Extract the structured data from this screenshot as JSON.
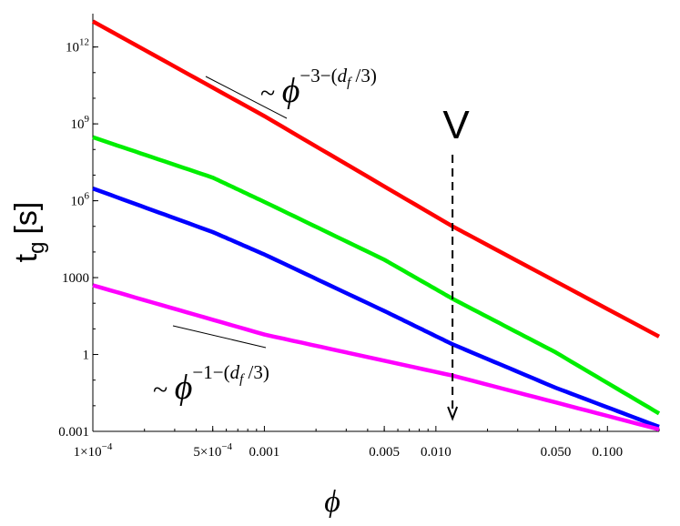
{
  "chart_data": {
    "type": "line",
    "title": "",
    "xlabel": "ϕ",
    "ylabel": {
      "main": "t",
      "sub": "g",
      "unit": "[s]"
    },
    "x_scale": "log",
    "y_scale": "log",
    "xlim": [
      0.0001,
      0.2
    ],
    "ylim": [
      0.001,
      20000000000000
    ],
    "x_ticks": [
      {
        "value": 0.0001,
        "label": "1×10",
        "sup": "−4"
      },
      {
        "value": 0.0005,
        "label": "5×10",
        "sup": "−4"
      },
      {
        "value": 0.001,
        "label": "0.001"
      },
      {
        "value": 0.005,
        "label": "0.005"
      },
      {
        "value": 0.01,
        "label": "0.010"
      },
      {
        "value": 0.05,
        "label": "0.050"
      },
      {
        "value": 0.1,
        "label": "0.100"
      }
    ],
    "y_ticks": [
      {
        "value": 0.001,
        "label": "0.001"
      },
      {
        "value": 1,
        "label": "1"
      },
      {
        "value": 1000,
        "label": "1000"
      },
      {
        "value": 1000000,
        "label": "10",
        "sup": "6"
      },
      {
        "value": 1000000000,
        "label": "10",
        "sup": "9"
      },
      {
        "value": 1000000000000,
        "label": "10",
        "sup": "12"
      }
    ],
    "series": [
      {
        "color": "#ff0000",
        "x": [
          0.0001,
          0.001,
          0.0125,
          0.2
        ],
        "y": [
          10000000000000,
          2000000000,
          100000,
          5
        ]
      },
      {
        "color": "#00ee00",
        "x": [
          0.0001,
          0.0005,
          0.001,
          0.005,
          0.0125,
          0.05,
          0.2
        ],
        "y": [
          300000000,
          8000000,
          900000,
          5000,
          150,
          1.2,
          0.005
        ]
      },
      {
        "color": "#0000ff",
        "x": [
          0.0001,
          0.0005,
          0.001,
          0.005,
          0.0125,
          0.05,
          0.2
        ],
        "y": [
          3000000,
          60000,
          8000,
          50,
          2.5,
          0.05,
          0.0015
        ]
      },
      {
        "color": "#ff00ff",
        "x": [
          0.0001,
          0.001,
          0.0125,
          0.2
        ],
        "y": [
          500,
          6,
          0.15,
          0.0012
        ]
      }
    ],
    "annotations": {
      "upper_slope": {
        "prefix": "~ ",
        "symbol": "ϕ",
        "exp": "−3−(",
        "exp_var": "d",
        "exp_sub": "f",
        "exp_end": " /3)"
      },
      "lower_slope": {
        "prefix": "~ ",
        "symbol": "ϕ",
        "exp": "−1−(",
        "exp_var": "d",
        "exp_sub": "f",
        "exp_end": " /3)"
      },
      "marker": {
        "label": "V",
        "x": 0.0125
      }
    },
    "grid": false,
    "legend": "none"
  }
}
